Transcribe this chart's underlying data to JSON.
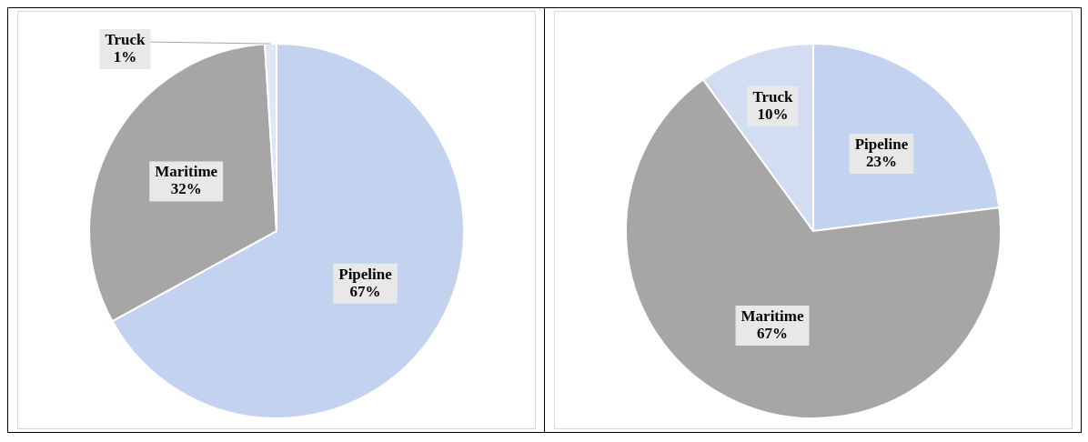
{
  "chart_data": [
    {
      "type": "pie",
      "categories": [
        "Pipeline",
        "Maritime",
        "Truck"
      ],
      "values": [
        67,
        32,
        1
      ],
      "value_labels": [
        "67%",
        "32%",
        "1%"
      ],
      "colors": [
        "#c3d2ef",
        "#a6a6a6",
        "#dfe6f5"
      ],
      "legend": false
    },
    {
      "type": "pie",
      "categories": [
        "Pipeline",
        "Maritime",
        "Truck"
      ],
      "values": [
        23,
        67,
        10
      ],
      "value_labels": [
        "23%",
        "67%",
        "10%"
      ],
      "colors": [
        "#c3d2ef",
        "#a6a6a6",
        "#d3ddf2"
      ],
      "legend": false
    }
  ]
}
